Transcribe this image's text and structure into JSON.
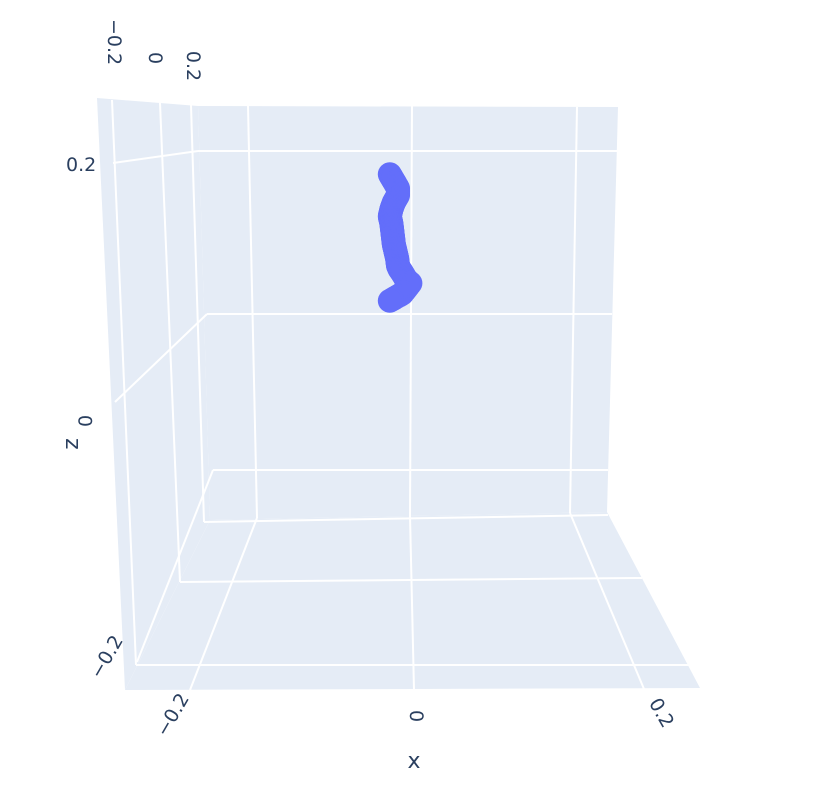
{
  "chart_data": {
    "type": "scatter3d",
    "title": "",
    "axes": {
      "x": {
        "title": "x",
        "ticks": [
          "−0.2",
          "0",
          "0.2"
        ],
        "range": [
          -0.25,
          0.25
        ]
      },
      "y": {
        "title": "",
        "ticks": [
          "−0.2",
          "0",
          "0.2"
        ],
        "range": [
          -0.25,
          0.25
        ]
      },
      "z": {
        "title": "z",
        "ticks": [
          "−0.2",
          "0",
          "0.2"
        ],
        "range": [
          -0.25,
          0.25
        ]
      }
    },
    "grid": true,
    "legend": false,
    "colors": {
      "marker": "#636efa",
      "pane": "#e5ecf6",
      "grid": "#ffffff",
      "text": "#2a3f5f"
    },
    "series": [
      {
        "mode": "markers",
        "points": [
          {
            "x": -0.01,
            "z": 0.23
          },
          {
            "x": -0.005,
            "z": 0.22
          },
          {
            "x": 0.0,
            "z": 0.21
          },
          {
            "x": 0.0,
            "z": 0.2
          },
          {
            "x": -0.005,
            "z": 0.19
          },
          {
            "x": -0.008,
            "z": 0.18
          },
          {
            "x": -0.01,
            "z": 0.17
          },
          {
            "x": -0.008,
            "z": 0.16
          },
          {
            "x": -0.007,
            "z": 0.15
          },
          {
            "x": -0.006,
            "z": 0.14
          },
          {
            "x": -0.005,
            "z": 0.13
          },
          {
            "x": -0.003,
            "z": 0.12
          },
          {
            "x": -0.001,
            "z": 0.11
          },
          {
            "x": 0.0,
            "z": 0.1
          },
          {
            "x": 0.002,
            "z": 0.095
          },
          {
            "x": 0.005,
            "z": 0.09
          },
          {
            "x": 0.01,
            "z": 0.08
          },
          {
            "x": 0.015,
            "z": 0.075
          },
          {
            "x": 0.005,
            "z": 0.06
          },
          {
            "x": -0.01,
            "z": 0.05
          }
        ]
      }
    ]
  }
}
